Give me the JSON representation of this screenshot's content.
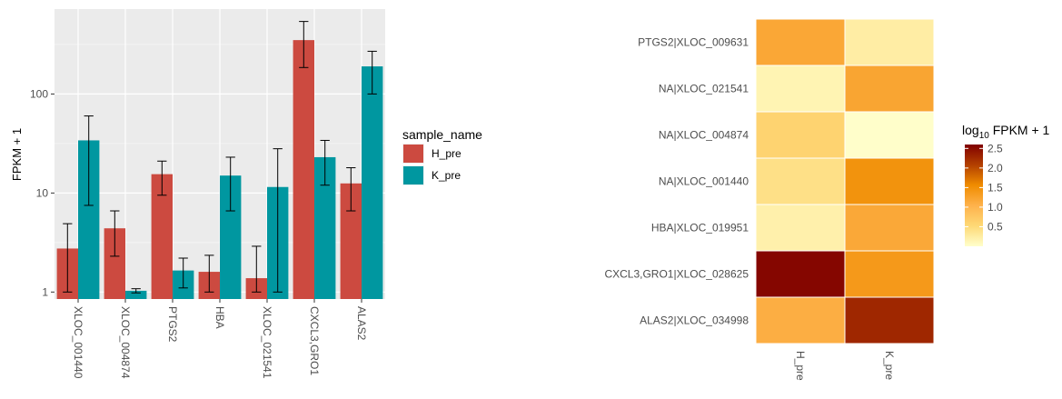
{
  "chart_data": [
    {
      "type": "bar",
      "ylabel": "FPKM + 1",
      "yscale": "log10",
      "ylim": [
        0.85,
        720
      ],
      "yticks": [
        1,
        10,
        100
      ],
      "ytick_labels": [
        "1",
        "10",
        "100"
      ],
      "categories": [
        "XLOC_001440",
        "XLOC_004874",
        "PTGS2",
        "HBA",
        "XLOC_021541",
        "CXCL3,GRO1",
        "ALAS2"
      ],
      "legend": {
        "title": "sample_name",
        "placement": "right"
      },
      "grid": true,
      "series": [
        {
          "name": "H_pre",
          "color": "#CC4A40",
          "values": [
            2.75,
            4.4,
            15.5,
            1.6,
            1.38,
            350,
            12.5
          ],
          "err_low": [
            1.0,
            2.3,
            9.5,
            1.0,
            1.0,
            185,
            6.6
          ],
          "err_high": [
            4.9,
            6.6,
            21,
            2.35,
            2.9,
            540,
            18
          ]
        },
        {
          "name": "K_pre",
          "color": "#0097A0",
          "values": [
            34,
            1.03,
            1.65,
            15,
            11.5,
            23,
            190
          ],
          "err_low": [
            7.5,
            0.98,
            1.1,
            6.6,
            1.0,
            12,
            100
          ],
          "err_high": [
            60,
            1.08,
            2.2,
            23,
            28,
            34,
            270
          ]
        }
      ]
    },
    {
      "type": "heatmap",
      "rows": [
        "PTGS2|XLOC_009631",
        "NA|XLOC_021541",
        "NA|XLOC_004874",
        "NA|XLOC_001440",
        "HBA|XLOC_019951",
        "CXCL3,GRO1|XLOC_028625",
        "ALAS2|XLOC_034998"
      ],
      "columns": [
        "H_pre",
        "K_pre"
      ],
      "values": [
        [
          1.19,
          0.24
        ],
        [
          0.15,
          1.22
        ],
        [
          0.6,
          0.01
        ],
        [
          0.42,
          1.47
        ],
        [
          0.2,
          1.18
        ],
        [
          2.55,
          1.38
        ],
        [
          1.1,
          2.28
        ]
      ],
      "colorbar": {
        "title_main": "log",
        "title_sub": "10",
        "title_rest": " FPKM + 1",
        "ticks": [
          0.5,
          1.0,
          1.5,
          2.0,
          2.5
        ],
        "tick_labels": [
          "0.5",
          "1.0",
          "1.5",
          "2.0",
          "2.5"
        ],
        "range": [
          0.0,
          2.6
        ],
        "colors": [
          "#FFFFCC",
          "#FED976",
          "#FEB24C",
          "#F08C00",
          "#B34000",
          "#800000"
        ]
      }
    }
  ]
}
